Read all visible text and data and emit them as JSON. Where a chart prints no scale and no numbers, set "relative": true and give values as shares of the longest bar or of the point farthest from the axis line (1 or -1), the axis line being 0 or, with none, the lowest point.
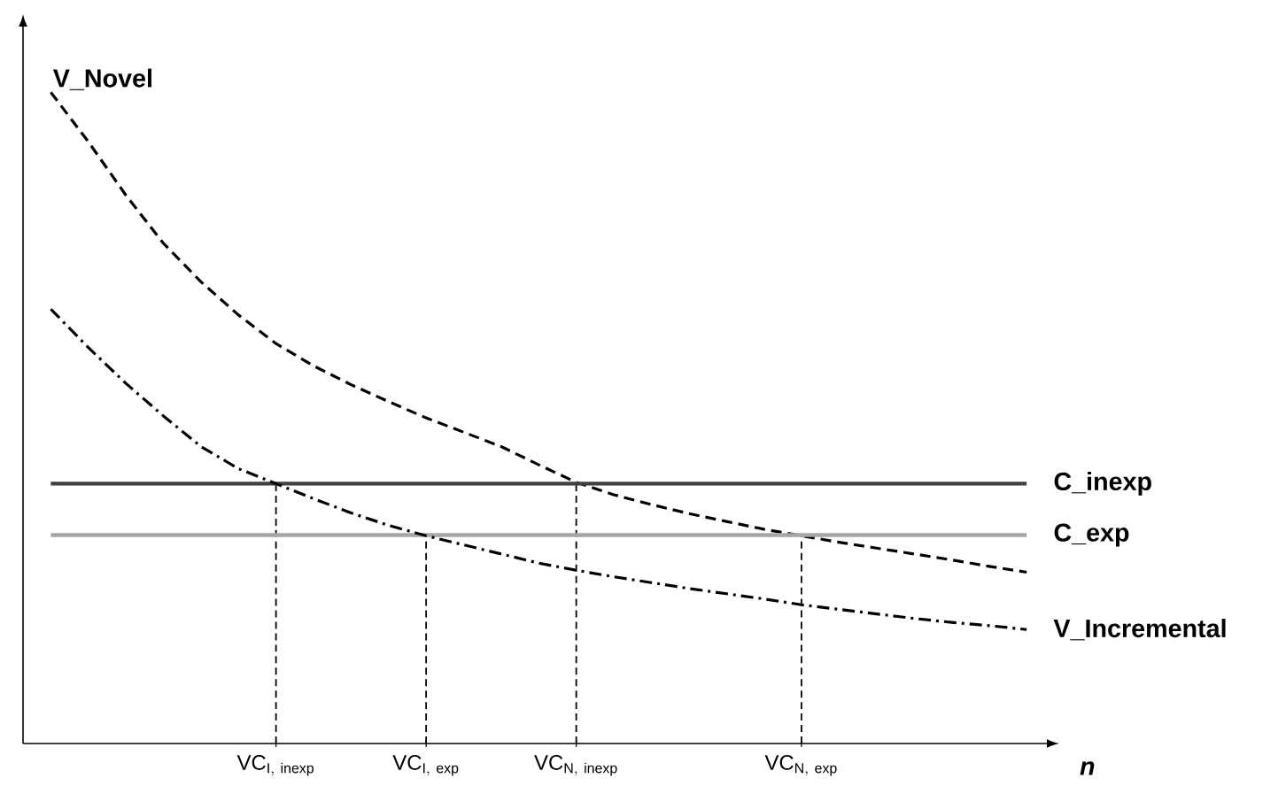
{
  "chart_data": {
    "type": "line",
    "relative": true,
    "xlabel": "n",
    "categories": [
      null,
      null,
      null,
      null,
      null,
      null,
      "\\mathrm{VC}_{\\mathrm{I,\\ inexp}}",
      null,
      null,
      null,
      "\\mathrm{VC}_{\\mathrm{I,\\ exp}}",
      null,
      null,
      null,
      "\\mathrm{VC}_{\\mathrm{N,\\ inexp}}",
      null,
      null,
      null,
      null,
      null,
      "\\mathrm{VC}_{\\mathrm{N,\\ exp}}",
      null,
      null,
      null,
      null,
      null,
      null
    ],
    "series": [
      {
        "name": "V_Novel",
        "color": "#000000",
        "line_style": "dashed",
        "values": [
          1.0,
          0.924,
          0.842,
          0.768,
          0.709,
          0.658,
          0.614,
          0.58,
          0.551,
          0.525,
          0.5,
          0.478,
          0.456,
          0.428,
          0.401,
          0.382,
          0.367,
          0.353,
          0.341,
          0.329,
          0.319,
          0.309,
          0.3,
          0.291,
          0.282,
          0.272,
          0.263
        ]
      },
      {
        "name": "C_inexp",
        "color": "#404040",
        "line_style": "solid",
        "values": [
          0.399,
          0.399,
          0.399,
          0.399,
          0.399,
          0.399,
          0.399,
          0.399,
          0.399,
          0.399,
          0.399,
          0.399,
          0.399,
          0.399,
          0.399,
          0.399,
          0.399,
          0.399,
          0.399,
          0.399,
          0.399,
          0.399,
          0.399,
          0.399,
          0.399,
          0.399,
          0.399
        ]
      },
      {
        "name": "C_exp",
        "color": "#a6a6a6",
        "line_style": "solid",
        "values": [
          0.32,
          0.32,
          0.32,
          0.32,
          0.32,
          0.32,
          0.32,
          0.32,
          0.32,
          0.32,
          0.32,
          0.32,
          0.32,
          0.32,
          0.32,
          0.32,
          0.32,
          0.32,
          0.32,
          0.32,
          0.32,
          0.32,
          0.32,
          0.32,
          0.32,
          0.32,
          0.32
        ]
      },
      {
        "name": "V_Incremental",
        "color": "#000000",
        "line_style": "dashdot",
        "values": [
          0.667,
          0.608,
          0.553,
          0.503,
          0.456,
          0.422,
          0.399,
          0.376,
          0.354,
          0.335,
          0.319,
          0.305,
          0.291,
          0.277,
          0.266,
          0.256,
          0.247,
          0.238,
          0.23,
          0.222,
          0.213,
          0.206,
          0.199,
          0.192,
          0.186,
          0.181,
          0.175
        ]
      }
    ],
    "ref_lines": [
      {
        "axis": "x",
        "value": "\\mathrm{VC}_{\\mathrm{I,\\ inexp}}",
        "line_style": "dashed"
      },
      {
        "axis": "x",
        "value": "\\mathrm{VC}_{\\mathrm{I,\\ exp}}",
        "line_style": "dashed"
      },
      {
        "axis": "x",
        "value": "\\mathrm{VC}_{\\mathrm{N,\\ inexp}}",
        "line_style": "dashed"
      },
      {
        "axis": "x",
        "value": "\\mathrm{VC}_{\\mathrm{N,\\ exp}}",
        "line_style": "dashed"
      }
    ]
  }
}
